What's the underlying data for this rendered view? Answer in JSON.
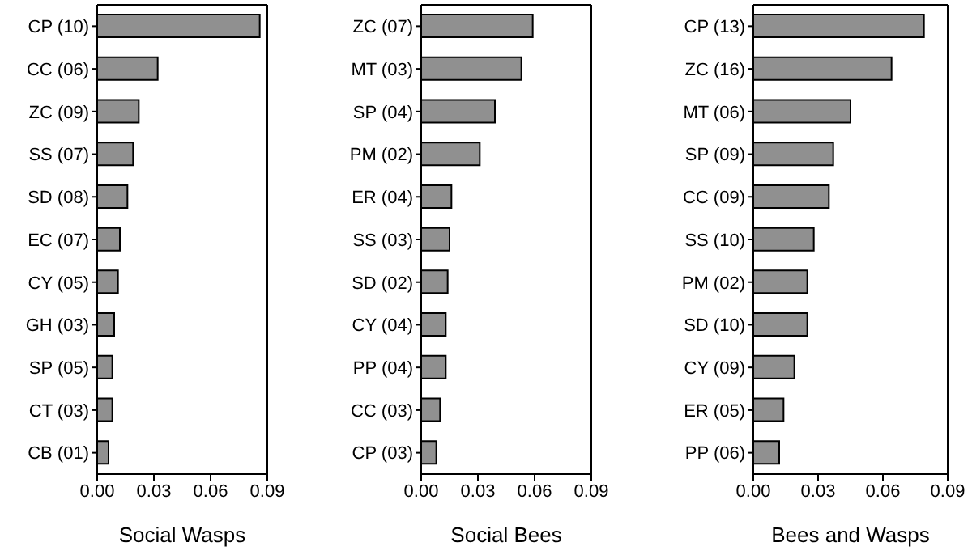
{
  "chart_data": [
    {
      "type": "bar",
      "orientation": "horizontal",
      "xlabel": "Social Wasps",
      "categories": [
        "CP (10)",
        "CC (06)",
        "ZC (09)",
        "SS (07)",
        "SD (08)",
        "EC (07)",
        "CY (05)",
        "GH (03)",
        "SP (05)",
        "CT (03)",
        "CB (01)"
      ],
      "values": [
        0.086,
        0.032,
        0.022,
        0.019,
        0.016,
        0.012,
        0.011,
        0.009,
        0.008,
        0.008,
        0.006
      ],
      "color": "#909090",
      "xlim": [
        0,
        0.09
      ],
      "xticks": [
        {
          "value": 0,
          "label": "0.00"
        },
        {
          "value": 0.03,
          "label": "0.03"
        },
        {
          "value": 0.06,
          "label": "0.06"
        },
        {
          "value": 0.09,
          "label": "0.09"
        }
      ],
      "grid": false
    },
    {
      "type": "bar",
      "orientation": "horizontal",
      "xlabel": "Social Bees",
      "categories": [
        "ZC (07)",
        "MT (03)",
        "SP (04)",
        "PM (02)",
        "ER (04)",
        "SS (03)",
        "SD (02)",
        "CY (04)",
        "PP (04)",
        "CC (03)",
        "CP (03)"
      ],
      "values": [
        0.059,
        0.053,
        0.039,
        0.031,
        0.016,
        0.015,
        0.014,
        0.013,
        0.013,
        0.01,
        0.008
      ],
      "color": "#909090",
      "xlim": [
        0,
        0.09
      ],
      "xticks": [
        {
          "value": 0,
          "label": "0.00"
        },
        {
          "value": 0.03,
          "label": "0.03"
        },
        {
          "value": 0.06,
          "label": "0.06"
        },
        {
          "value": 0.09,
          "label": "0.09"
        }
      ],
      "grid": false
    },
    {
      "type": "bar",
      "orientation": "horizontal",
      "xlabel": "Bees and Wasps",
      "categories": [
        "CP (13)",
        "ZC (16)",
        "MT (06)",
        "SP (09)",
        "CC (09)",
        "SS (10)",
        "PM (02)",
        "SD (10)",
        "CY (09)",
        "ER (05)",
        "PP (06)"
      ],
      "values": [
        0.079,
        0.064,
        0.045,
        0.037,
        0.035,
        0.028,
        0.025,
        0.025,
        0.019,
        0.014,
        0.012
      ],
      "color": "#909090",
      "xlim": [
        0,
        0.09
      ],
      "xticks": [
        {
          "value": 0,
          "label": "0.00"
        },
        {
          "value": 0.03,
          "label": "0.03"
        },
        {
          "value": 0.06,
          "label": "0.06"
        },
        {
          "value": 0.09,
          "label": "0.09"
        }
      ],
      "grid": false
    }
  ]
}
